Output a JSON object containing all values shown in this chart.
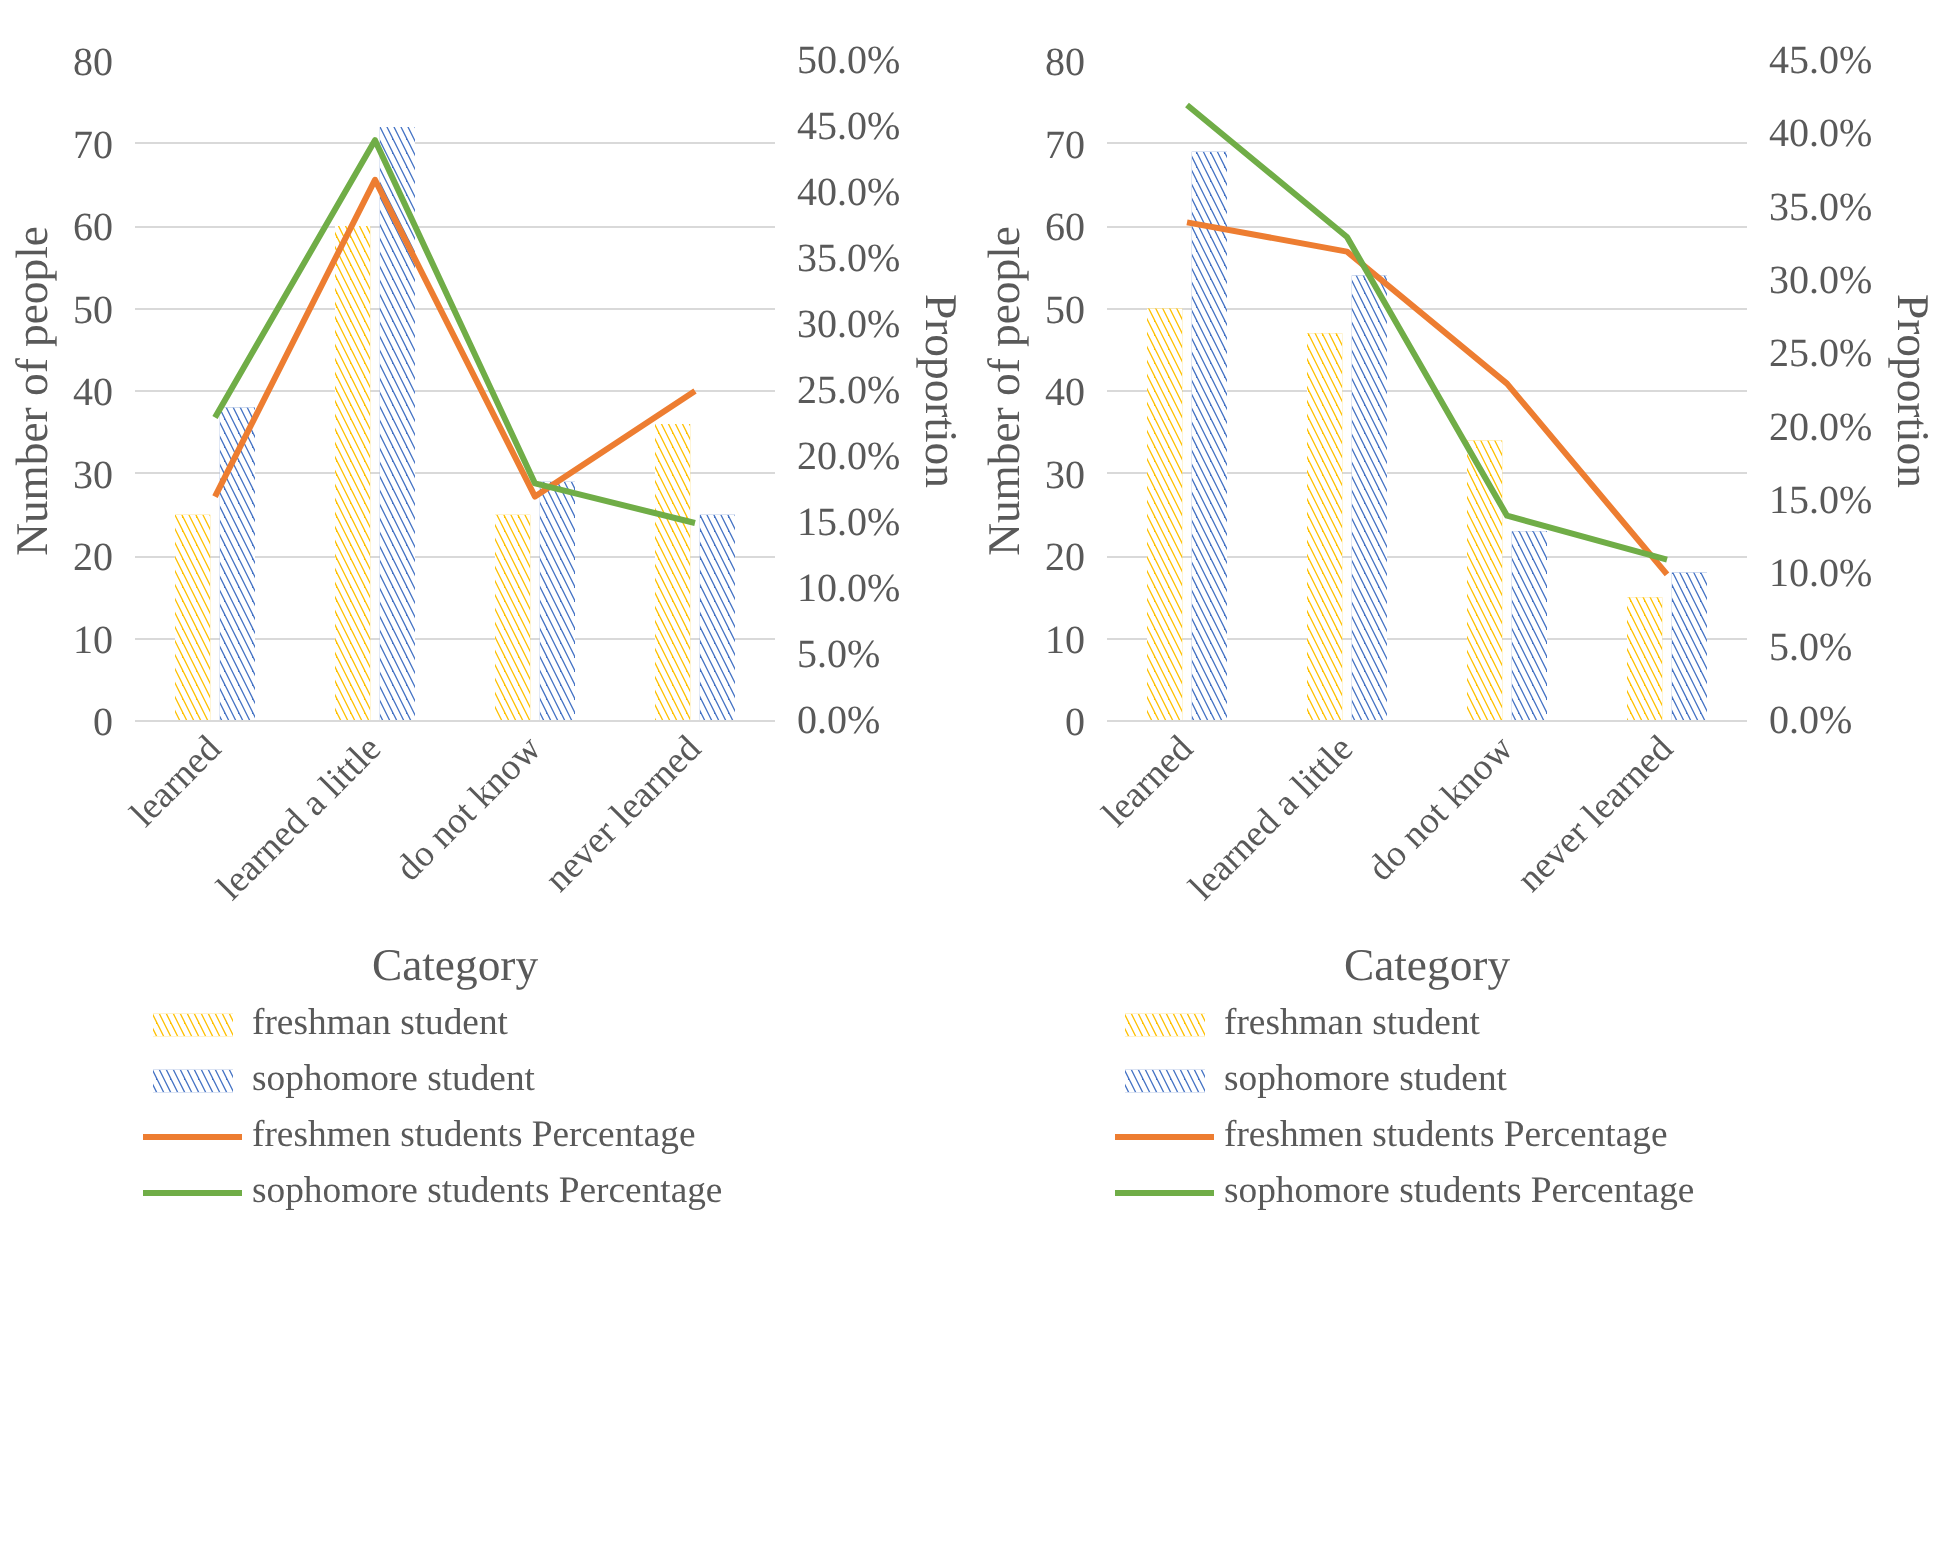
{
  "chart_data": [
    {
      "type": "bar",
      "categories": [
        "learned",
        "learned a little",
        "do not know",
        "never learned"
      ],
      "xlabel": "Category",
      "ylabel": "Number of people",
      "y2label": "Proportion",
      "ylim": [
        0,
        80
      ],
      "yticks": [
        0,
        10,
        20,
        30,
        40,
        50,
        60,
        70,
        80
      ],
      "y2lim": [
        0,
        50
      ],
      "y2ticks": [
        {
          "value": 0,
          "label": "0.0%"
        },
        {
          "value": 5,
          "label": "5.0%"
        },
        {
          "value": 10,
          "label": "10.0%"
        },
        {
          "value": 15,
          "label": "15.0%"
        },
        {
          "value": 20,
          "label": "20.0%"
        },
        {
          "value": 25,
          "label": "25.0%"
        },
        {
          "value": 30,
          "label": "30.0%"
        },
        {
          "value": 35,
          "label": "35.0%"
        },
        {
          "value": 40,
          "label": "40.0%"
        },
        {
          "value": 45,
          "label": "45.0%"
        },
        {
          "value": 50,
          "label": "50.0%"
        }
      ],
      "grid": "y",
      "legend": "bottom",
      "series": [
        {
          "name": "freshman student",
          "color": "#ffc000",
          "values": [
            25,
            60,
            25,
            36
          ]
        },
        {
          "name": "sophomore student",
          "color": "#4472c4",
          "values": [
            38,
            72,
            29,
            25
          ]
        },
        {
          "name": "freshmen students Percentage",
          "type": "line",
          "axis": "y2",
          "color": "#ed7d31",
          "values": [
            17,
            41,
            17,
            25
          ]
        },
        {
          "name": "sophomore students Percentage",
          "type": "line",
          "axis": "y2",
          "color": "#70ad47",
          "values": [
            23,
            44,
            18,
            15
          ]
        }
      ]
    },
    {
      "type": "bar",
      "categories": [
        "learned",
        "learned a little",
        "do not know",
        "never learned"
      ],
      "xlabel": "Category",
      "ylabel": "Number of people",
      "y2label": "Proportion",
      "ylim": [
        0,
        80
      ],
      "yticks": [
        0,
        10,
        20,
        30,
        40,
        50,
        60,
        70,
        80
      ],
      "y2lim": [
        0,
        45
      ],
      "y2ticks": [
        {
          "value": 0,
          "label": "0.0%"
        },
        {
          "value": 5,
          "label": "5.0%"
        },
        {
          "value": 10,
          "label": "10.0%"
        },
        {
          "value": 15,
          "label": "15.0%"
        },
        {
          "value": 20,
          "label": "20.0%"
        },
        {
          "value": 25,
          "label": "25.0%"
        },
        {
          "value": 30,
          "label": "30.0%"
        },
        {
          "value": 35,
          "label": "35.0%"
        },
        {
          "value": 40,
          "label": "40.0%"
        },
        {
          "value": 45,
          "label": "45.0%"
        }
      ],
      "grid": "y",
      "legend": "bottom",
      "series": [
        {
          "name": "freshman student",
          "color": "#ffc000",
          "values": [
            50,
            47,
            34,
            15
          ]
        },
        {
          "name": "sophomore student",
          "color": "#4472c4",
          "values": [
            69,
            54,
            23,
            18
          ]
        },
        {
          "name": "freshmen students Percentage",
          "type": "line",
          "axis": "y2",
          "color": "#ed7d31",
          "values": [
            34,
            32,
            23,
            10
          ]
        },
        {
          "name": "sophomore students Percentage",
          "type": "line",
          "axis": "y2",
          "color": "#70ad47",
          "values": [
            42,
            33,
            14,
            11
          ]
        }
      ]
    }
  ]
}
